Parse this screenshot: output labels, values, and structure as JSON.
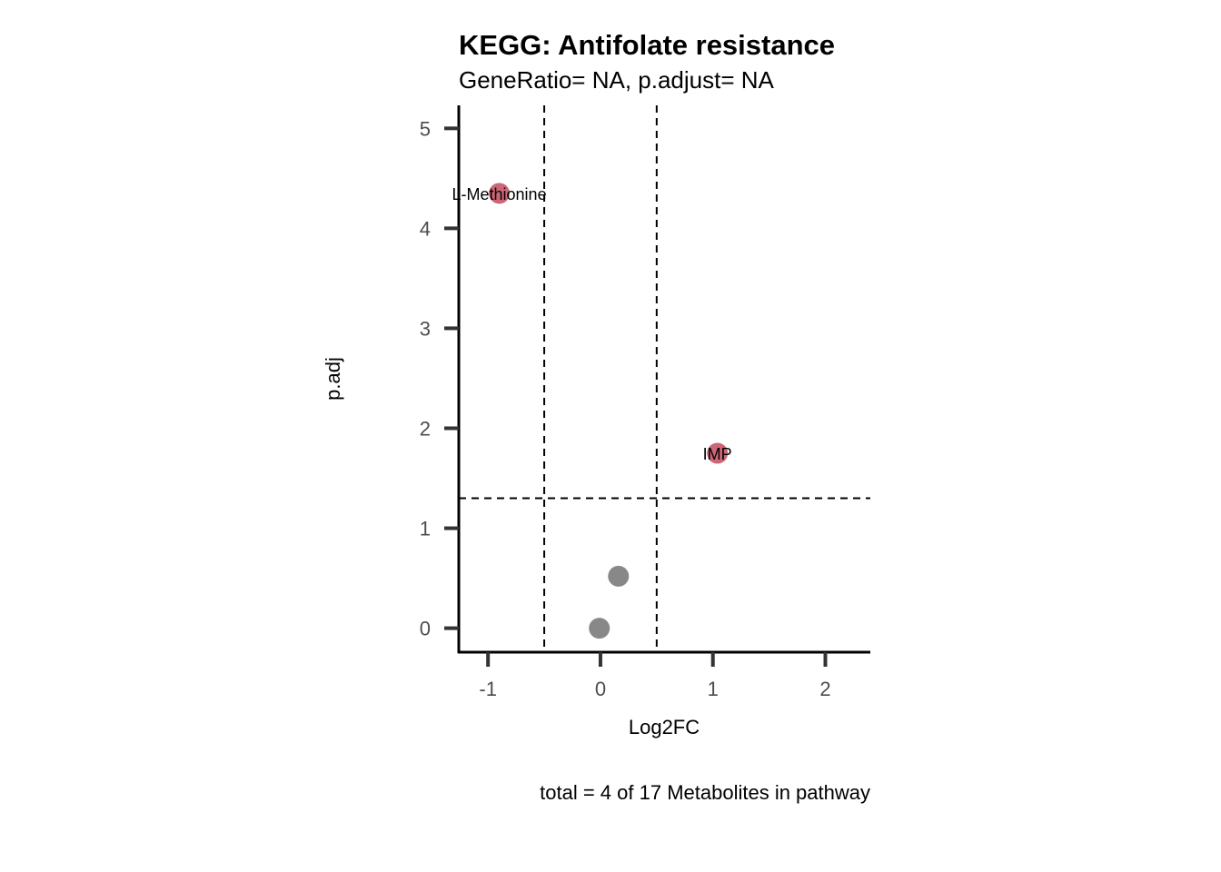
{
  "chart_data": {
    "type": "scatter",
    "title": "KEGG: Antifolate resistance",
    "subtitle": "GeneRatio= NA, p.adjust= NA",
    "xlabel": "Log2FC",
    "ylabel": "p.adj",
    "caption": "total = 4 of 17 Metabolites in pathway",
    "xlim": [
      -1.26,
      2.4
    ],
    "ylim": [
      -0.24,
      5.23
    ],
    "x_ticks": [
      -1,
      0,
      1,
      2
    ],
    "y_ticks": [
      0,
      1,
      2,
      3,
      4,
      5
    ],
    "x_tick_labels": [
      "-1",
      "0",
      "1",
      "2"
    ],
    "y_tick_labels": [
      "0",
      "1",
      "2",
      "3",
      "4",
      "5"
    ],
    "vlines": [
      -0.5,
      0.5
    ],
    "hlines": [
      1.3
    ],
    "grid": false,
    "legend": "none",
    "colors": {
      "significant": "#cc6677",
      "not_significant": "#888888"
    },
    "points": [
      {
        "x": -0.9,
        "y": 4.35,
        "label": "L-Methionine",
        "significant": true
      },
      {
        "x": 1.04,
        "y": 1.75,
        "label": "IMP",
        "significant": true
      },
      {
        "x": 0.16,
        "y": 0.52,
        "label": "",
        "significant": false
      },
      {
        "x": -0.01,
        "y": 0.0,
        "label": "",
        "significant": false
      }
    ]
  }
}
